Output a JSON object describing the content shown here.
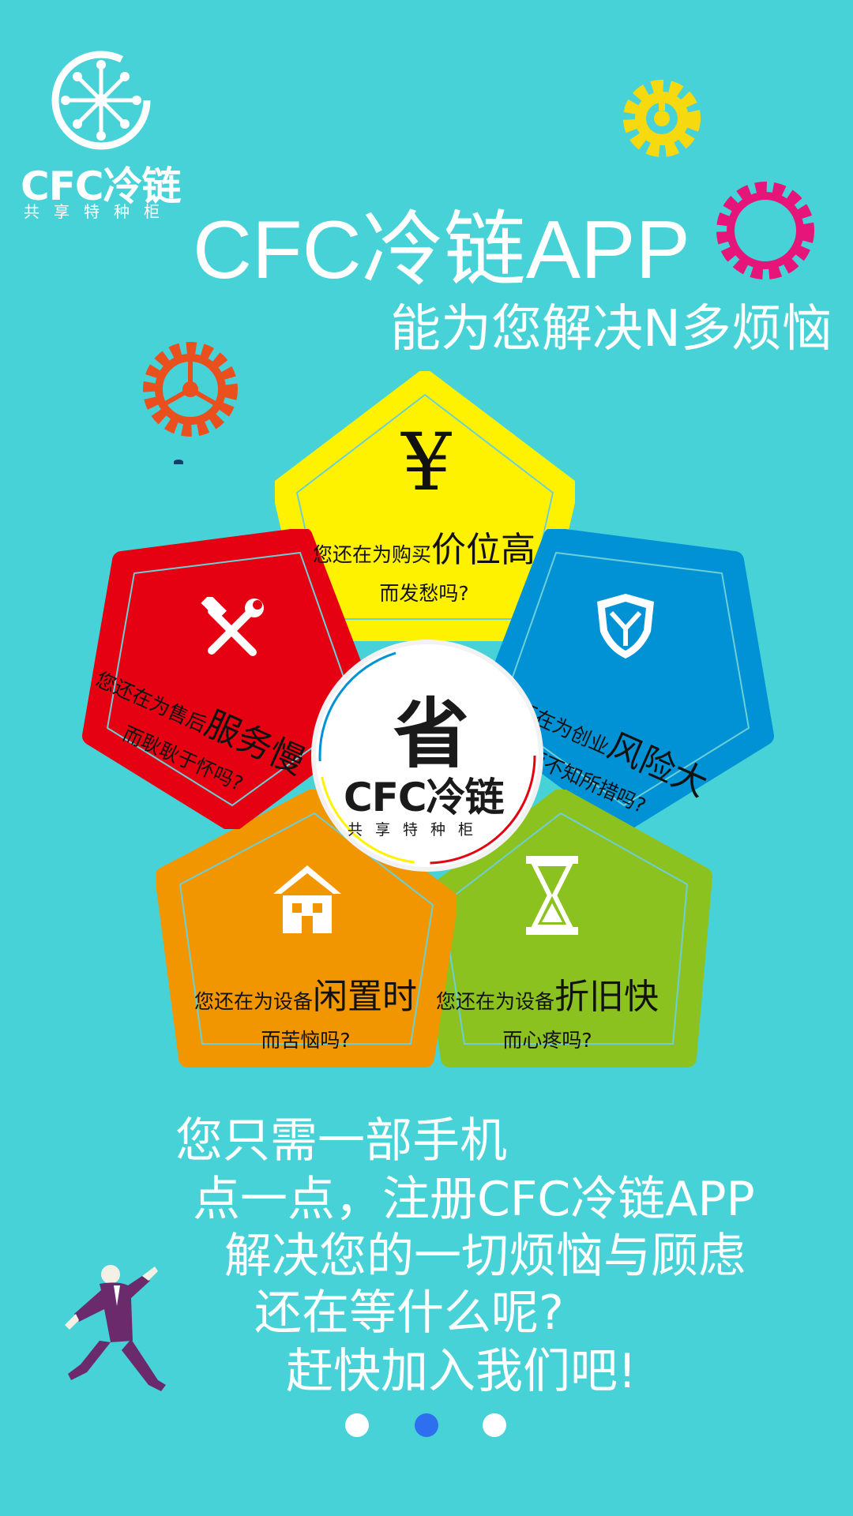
{
  "logo": {
    "brand": "CFC冷链",
    "tagline": "共享特种柜"
  },
  "title": "CFC冷链APP",
  "subtitle": "能为您解决N多烦恼",
  "petals": [
    {
      "icon": "yen-icon",
      "prefix": "您还在为购买",
      "highlight": "价位高",
      "suffix": "而发愁吗?",
      "color": "#fff200"
    },
    {
      "icon": "shield-icon",
      "prefix": "您还在为创业",
      "highlight": "风险大",
      "suffix": "而不知所措吗?",
      "color": "#0192d6"
    },
    {
      "icon": "hourglass-icon",
      "prefix": "您还在为设备",
      "highlight": "折旧快",
      "suffix": "而心疼吗?",
      "color": "#8cc21f"
    },
    {
      "icon": "house-icon",
      "prefix": "您还在为设备",
      "highlight": "闲置时",
      "suffix": "而苦恼吗?",
      "color": "#f29600"
    },
    {
      "icon": "tools-icon",
      "prefix": "您还在为售后",
      "highlight": "服务慢",
      "suffix": "而耿耿于怀吗?",
      "color": "#e50012"
    }
  ],
  "center": {
    "char": "省",
    "brand": "CFC冷链",
    "tagline": "共享特种柜"
  },
  "body_lines": [
    "您只需一部手机",
    "点一点，注册CFC冷链APP",
    "解决您的一切烦恼与顾虑",
    "还在等什么呢?",
    "赶快加入我们吧!"
  ],
  "pagination": {
    "total": 3,
    "active": 2,
    "colors": {
      "active": "#2e6ff0",
      "inactive": "#ffffff"
    }
  }
}
